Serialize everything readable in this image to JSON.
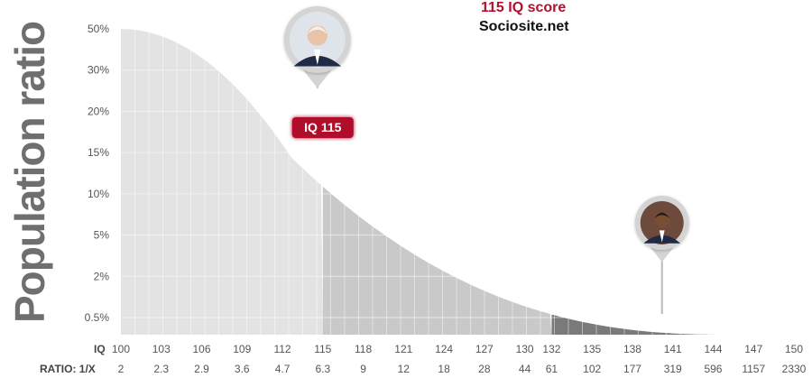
{
  "header": {
    "title": "115 IQ score",
    "subtitle": "Sociosite.net"
  },
  "labels": {
    "iq_row": "IQ",
    "ratio_row": "RATIO: 1/X",
    "marker": "IQ 115"
  },
  "chart_data": {
    "type": "area",
    "ylabel": "Population ratio",
    "y_tick_labels": [
      "50%",
      "30%",
      "20%",
      "15%",
      "10%",
      "5%",
      "2%",
      "0.5%"
    ],
    "iq": [
      100,
      103,
      106,
      109,
      112,
      115,
      118,
      121,
      124,
      127,
      130,
      132,
      135,
      138,
      141,
      144,
      147,
      150
    ],
    "ratio": [
      "2",
      "2.3",
      "2.9",
      "3.6",
      "4.7",
      "6.3",
      "9",
      "12",
      "18",
      "28",
      "44",
      "61",
      "102",
      "177",
      "319",
      "596",
      "1157",
      "2330"
    ],
    "highlight": {
      "iq": 115,
      "y_tick": "15%",
      "label": "IQ 115"
    },
    "bands": [
      {
        "from": 100,
        "to": 115,
        "color": "#e3e3e3"
      },
      {
        "from": 115,
        "to": 132,
        "color": "#c9c9c9"
      },
      {
        "from": 132,
        "to": 147,
        "color": "#7a7a7a"
      }
    ],
    "pins": [
      {
        "name": "portrait-pin-115",
        "iq": 115
      },
      {
        "name": "portrait-pin-141",
        "iq": 141
      }
    ],
    "colors": {
      "accent": "#b0112c",
      "axis_text": "#555555",
      "grid": "#ffffff"
    },
    "grid": true
  }
}
